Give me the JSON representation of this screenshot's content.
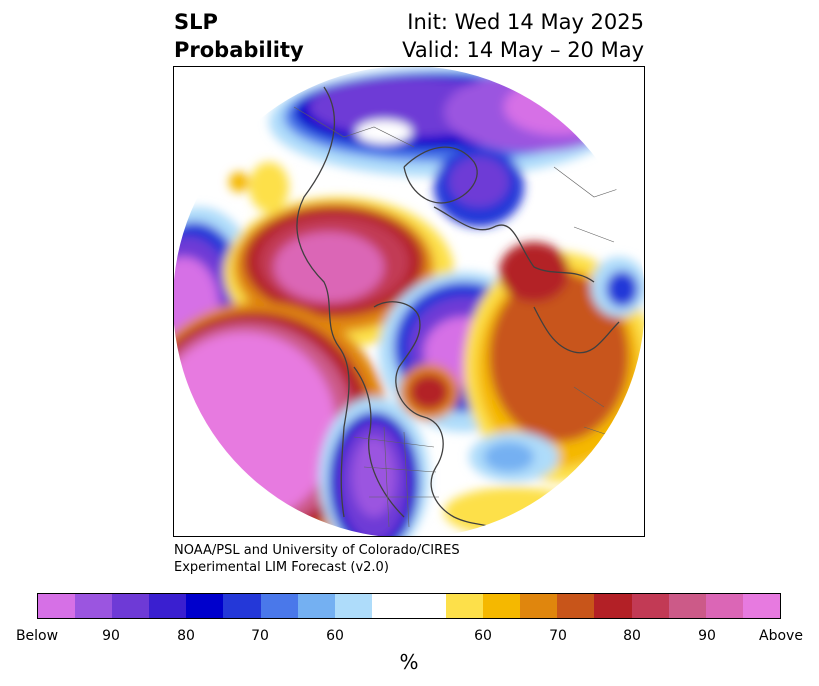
{
  "header": {
    "title_line1": "SLP",
    "title_line2": "Probability",
    "init_text": "Init: Wed 14 May 2025",
    "valid_text": "Valid: 14 May – 20 May"
  },
  "credit": {
    "line1": "NOAA/PSL and University of Colorado/CIRES",
    "line2": "Experimental LIM Forecast (v2.0)"
  },
  "colorbar": {
    "colors": [
      "#d670e6",
      "#9b55e0",
      "#6e3ad6",
      "#3a1fd0",
      "#0000cc",
      "#2438d8",
      "#4a78ea",
      "#74b0f2",
      "#aedcfa",
      "#ffffff",
      "#ffffff",
      "#fde04a",
      "#f5b800",
      "#e0860d",
      "#c8551a",
      "#b32026",
      "#c23a55",
      "#cc5a88",
      "#db66b6",
      "#e77ae0"
    ],
    "labels": [
      "Below",
      "90",
      "80",
      "70",
      "60",
      "60",
      "70",
      "80",
      "90",
      "Above"
    ],
    "unit": "%"
  },
  "map": {
    "projection": "north-polar-stereographic",
    "variable": "SLP probability"
  }
}
